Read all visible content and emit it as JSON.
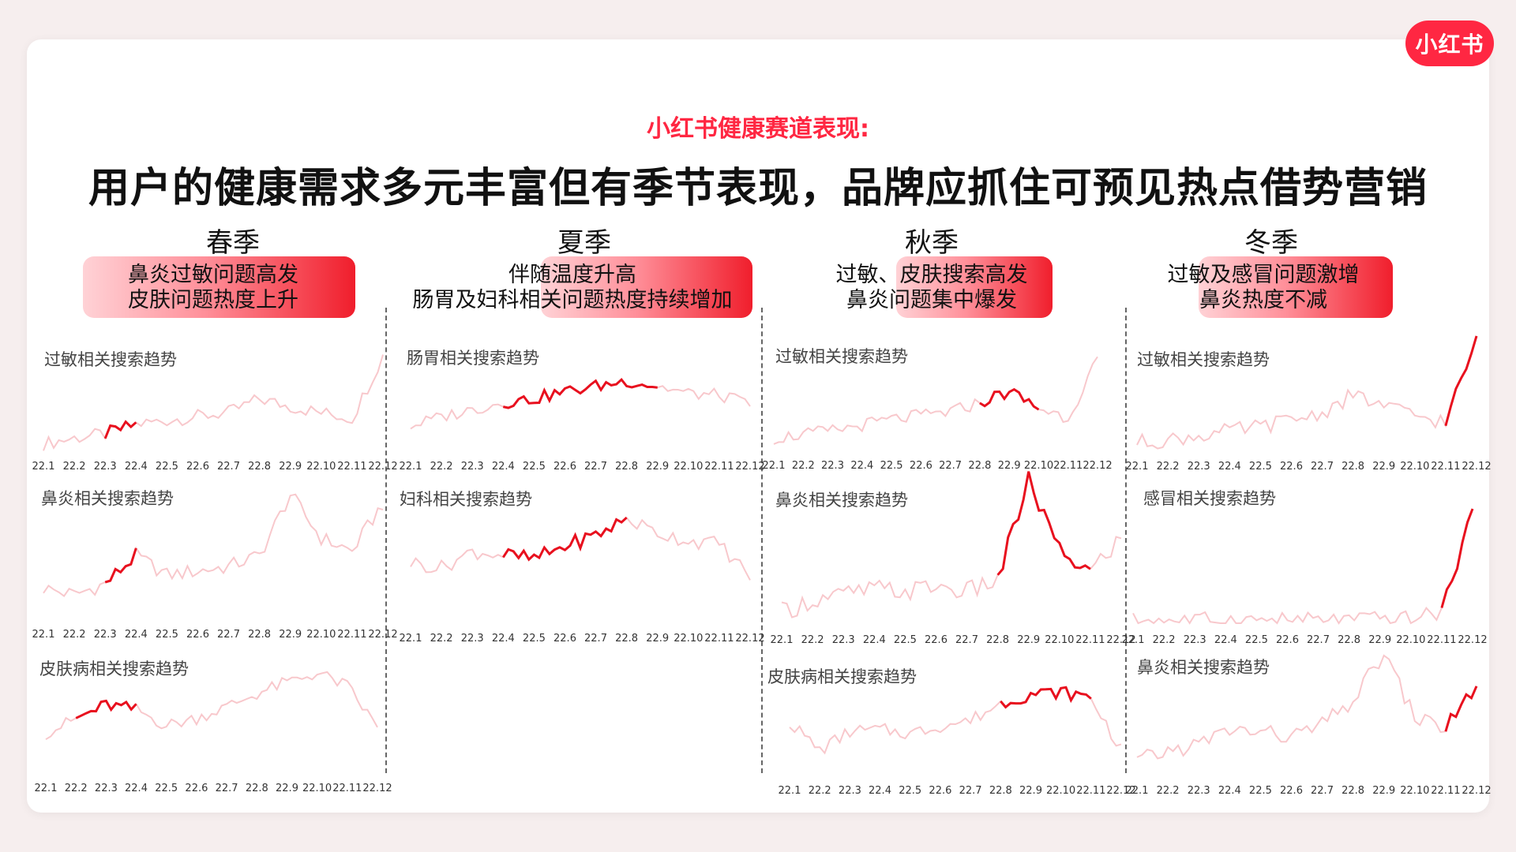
{
  "brand": {
    "logo_text": "小红书",
    "accent": "#ff2742"
  },
  "header": {
    "subtitle": "小红书健康赛道表现:",
    "title": "用户的健康需求多元丰富但有季节表现，品牌应抓住可预见热点借势营销"
  },
  "seasons": [
    {
      "name": "春季",
      "line1": "鼻炎过敏问题高发",
      "line2": "皮肤问题热度上升"
    },
    {
      "name": "夏季",
      "line1": "伴随温度升高",
      "line2": "肠胃及妇科相关问题热度持续增加"
    },
    {
      "name": "秋季",
      "line1": "过敏、皮肤搜索高发",
      "line2": "鼻炎问题集中爆发"
    },
    {
      "name": "冬季",
      "line1": "过敏及感冒问题激增",
      "line2": "鼻炎热度不减"
    }
  ],
  "chart_data": [
    {
      "type": "line",
      "title": "过敏相关搜索趋势",
      "season": "春季",
      "x": [
        "22.1",
        "22.2",
        "22.3",
        "22.4",
        "22.5",
        "22.6",
        "22.7",
        "22.8",
        "22.9",
        "22.10",
        "22.11",
        "22.12"
      ],
      "values": [
        10,
        16,
        20,
        30,
        34,
        38,
        42,
        56,
        48,
        42,
        36,
        100
      ],
      "highlight": [
        2,
        3
      ]
    },
    {
      "type": "line",
      "title": "鼻炎相关搜索趋势",
      "season": "春季",
      "x": [
        "22.1",
        "22.2",
        "22.3",
        "22.4",
        "22.5",
        "22.6",
        "22.7",
        "22.8",
        "22.9",
        "22.10",
        "22.11",
        "22.12"
      ],
      "values": [
        14,
        8,
        18,
        44,
        26,
        30,
        34,
        44,
        100,
        60,
        48,
        92
      ],
      "highlight": [
        2,
        3
      ]
    },
    {
      "type": "line",
      "title": "皮肤病相关搜索趋势",
      "season": "春季",
      "x": [
        "22.1",
        "22.2",
        "22.3",
        "22.4",
        "22.5",
        "22.6",
        "22.7",
        "22.8",
        "22.9",
        "22.10",
        "22.11",
        "22.12"
      ],
      "values": [
        30,
        45,
        60,
        55,
        38,
        46,
        58,
        72,
        84,
        94,
        80,
        36
      ],
      "highlight": [
        1,
        3
      ]
    },
    {
      "type": "line",
      "title": "肠胃相关搜索趋势",
      "season": "夏季",
      "x": [
        "22.1",
        "22.2",
        "22.3",
        "22.4",
        "22.5",
        "22.6",
        "22.7",
        "22.8",
        "22.9",
        "22.10",
        "22.11",
        "22.12"
      ],
      "values": [
        22,
        32,
        40,
        48,
        52,
        60,
        66,
        72,
        66,
        58,
        56,
        46
      ],
      "highlight": [
        3,
        8
      ]
    },
    {
      "type": "line",
      "title": "妇科相关搜索趋势",
      "season": "夏季",
      "x": [
        "22.1",
        "22.2",
        "22.3",
        "22.4",
        "22.5",
        "22.6",
        "22.7",
        "22.8",
        "22.9",
        "22.10",
        "22.11",
        "22.12"
      ],
      "values": [
        45,
        40,
        55,
        52,
        48,
        60,
        70,
        85,
        72,
        65,
        62,
        32
      ],
      "highlight": [
        3,
        7
      ]
    },
    {
      "type": "line",
      "title": "过敏相关搜索趋势",
      "season": "秋季",
      "x": [
        "22.1",
        "22.2",
        "22.3",
        "22.4",
        "22.5",
        "22.6",
        "22.7",
        "22.8",
        "22.9",
        "22.10",
        "22.11",
        "22.12"
      ],
      "values": [
        8,
        12,
        16,
        22,
        28,
        32,
        36,
        46,
        58,
        40,
        30,
        92
      ],
      "highlight": [
        7,
        9
      ]
    },
    {
      "type": "line",
      "title": "鼻炎相关搜索趋势",
      "season": "秋季",
      "x": [
        "22.1",
        "22.2",
        "22.3",
        "22.4",
        "22.5",
        "22.6",
        "22.7",
        "22.8",
        "22.9",
        "22.10",
        "22.11",
        "22.12"
      ],
      "values": [
        8,
        16,
        20,
        24,
        22,
        26,
        22,
        30,
        100,
        50,
        36,
        60
      ],
      "highlight": [
        7,
        10
      ]
    },
    {
      "type": "line",
      "title": "皮肤病相关搜索趋势",
      "season": "秋季",
      "x": [
        "22.1",
        "22.2",
        "22.3",
        "22.4",
        "22.5",
        "22.6",
        "22.7",
        "22.8",
        "22.9",
        "22.10",
        "22.11",
        "22.12"
      ],
      "values": [
        50,
        20,
        40,
        42,
        38,
        46,
        52,
        70,
        80,
        82,
        76,
        20
      ],
      "highlight": [
        7,
        10
      ]
    },
    {
      "type": "line",
      "title": "过敏相关搜索趋势",
      "season": "冬季",
      "x": [
        "22.1",
        "22.2",
        "22.3",
        "22.4",
        "22.5",
        "22.6",
        "22.7",
        "22.8",
        "22.9",
        "22.10",
        "22.11",
        "22.12"
      ],
      "values": [
        10,
        12,
        16,
        20,
        24,
        30,
        36,
        52,
        42,
        34,
        28,
        100
      ],
      "highlight": [
        10,
        11
      ]
    },
    {
      "type": "line",
      "title": "感冒相关搜索趋势",
      "season": "冬季",
      "x": [
        "22.1",
        "22.2",
        "22.3",
        "22.4",
        "22.5",
        "22.6",
        "22.7",
        "22.8",
        "22.9",
        "22.10",
        "22.11",
        "22.12"
      ],
      "values": [
        3,
        3,
        3,
        3,
        3,
        3,
        3,
        3,
        4,
        4,
        10,
        100
      ],
      "highlight": [
        10,
        11
      ]
    },
    {
      "type": "line",
      "title": "鼻炎相关搜索趋势",
      "season": "冬季",
      "x": [
        "22.1",
        "22.2",
        "22.3",
        "22.4",
        "22.5",
        "22.6",
        "22.7",
        "22.8",
        "22.9",
        "22.10",
        "22.11",
        "22.12"
      ],
      "values": [
        10,
        18,
        24,
        36,
        34,
        30,
        40,
        60,
        100,
        46,
        38,
        72
      ],
      "highlight": [
        10,
        11
      ]
    }
  ]
}
